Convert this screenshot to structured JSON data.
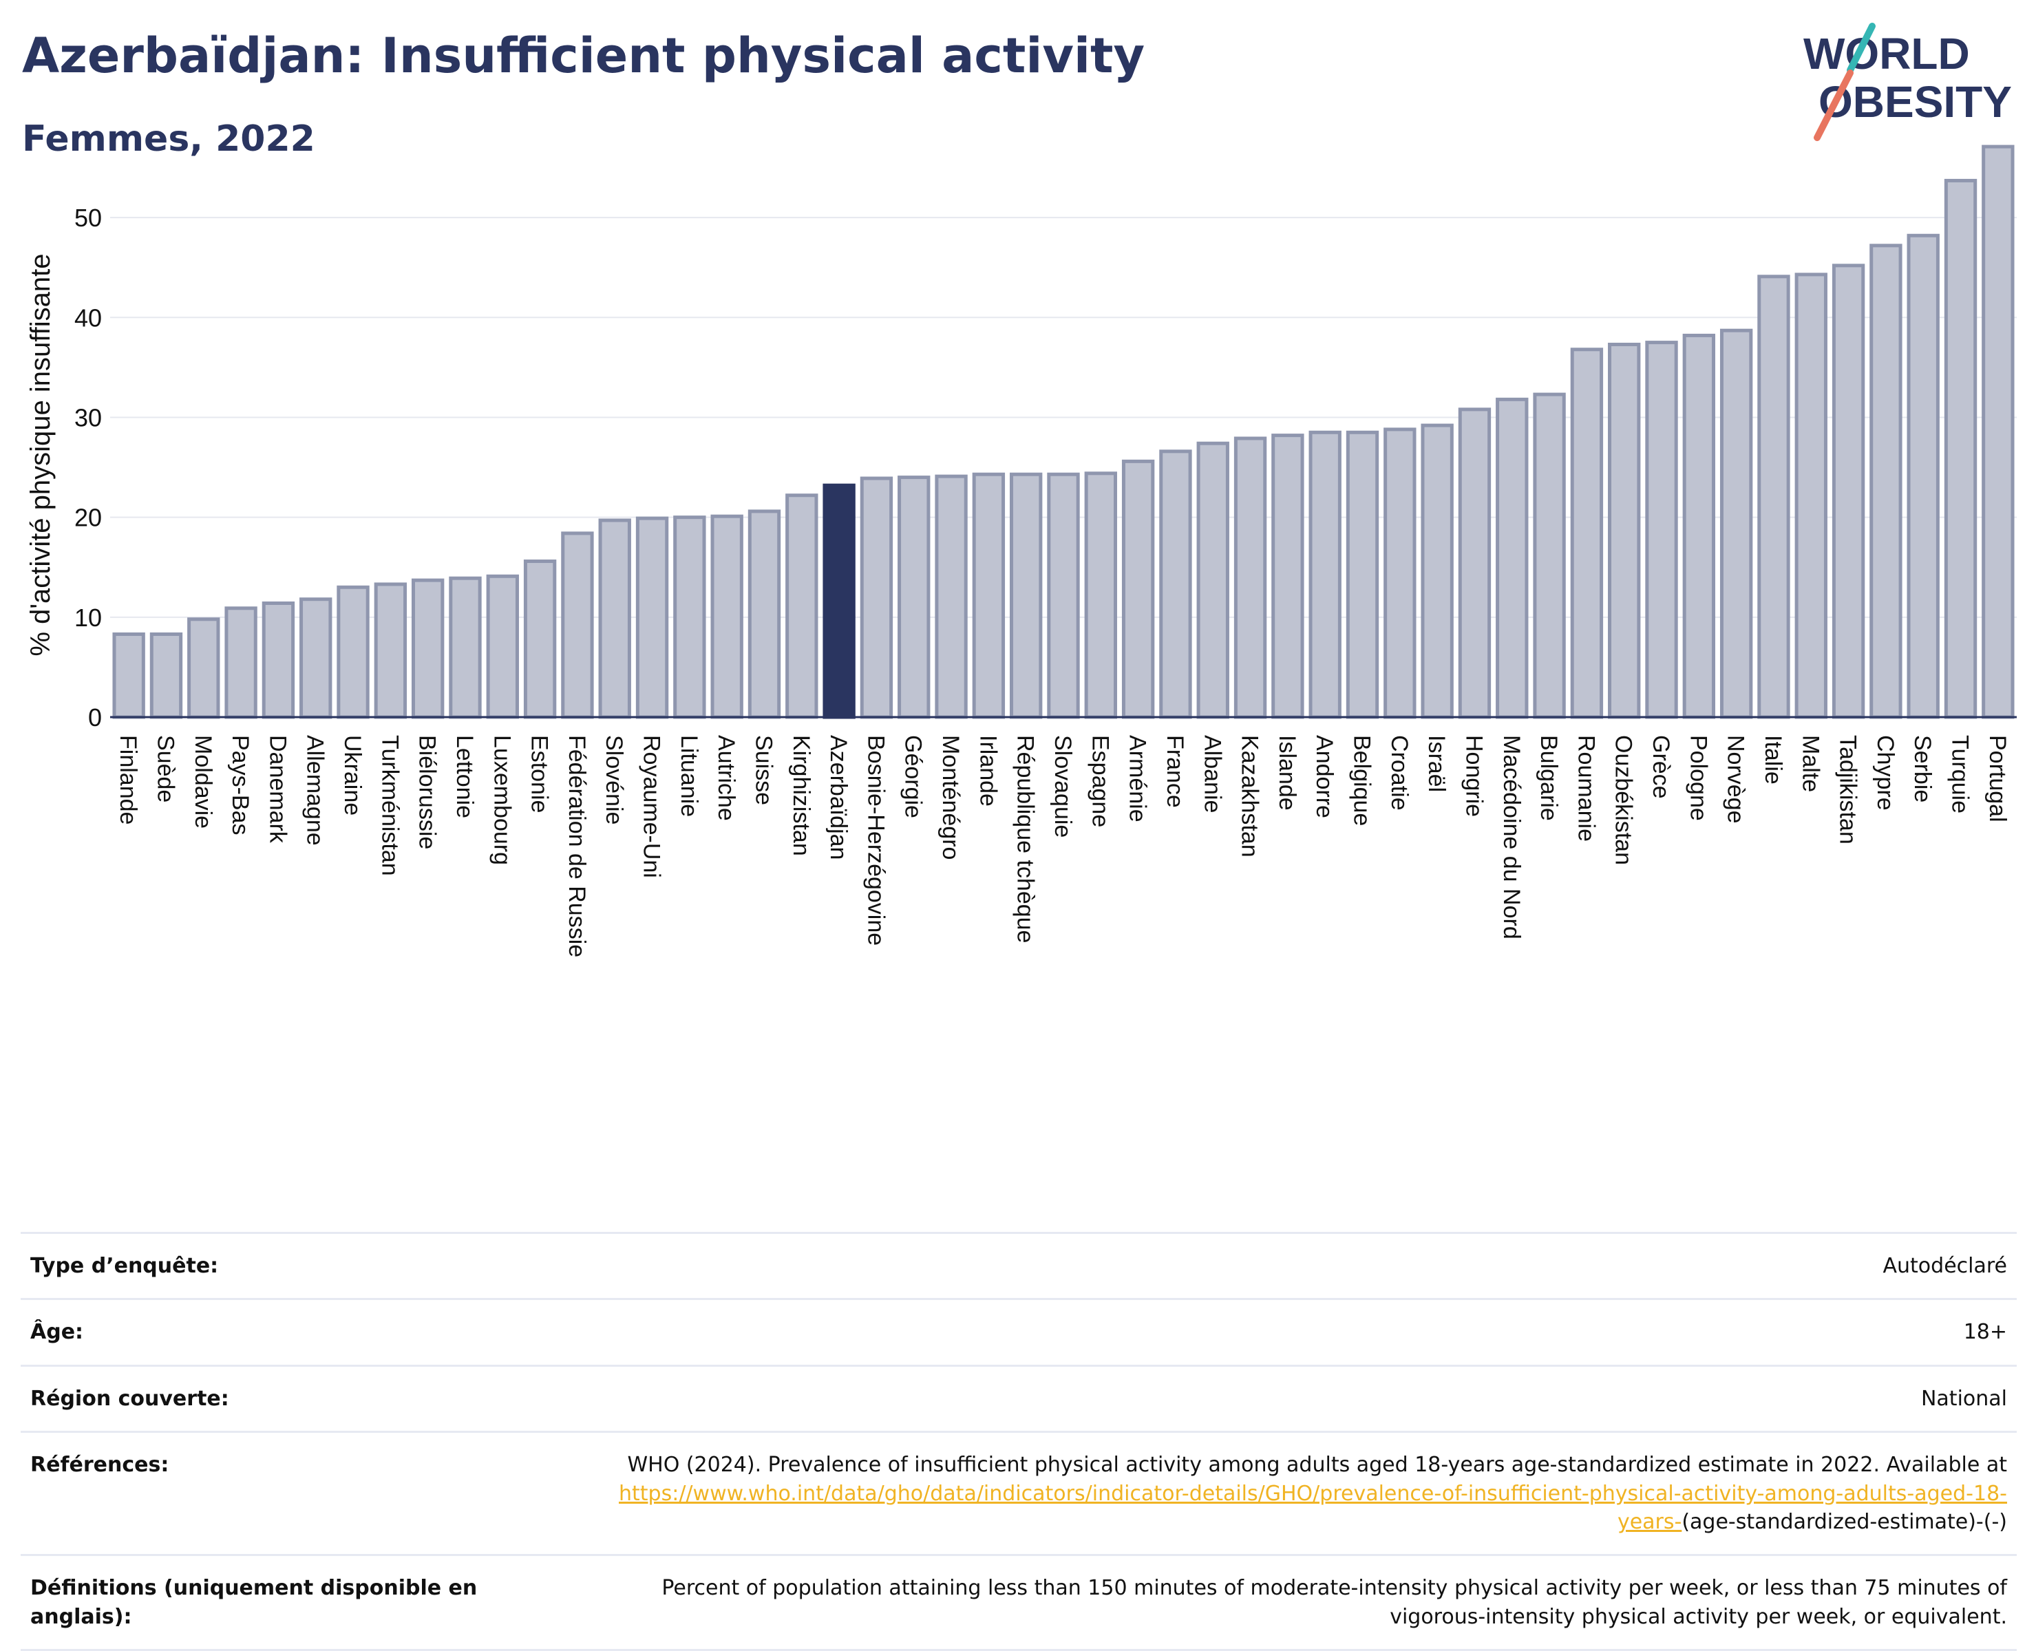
{
  "header": {
    "title": "Azerbaïdjan: Insufficient physical activity",
    "subtitle": "Femmes, 2022",
    "logo_line1": "WORLD",
    "logo_line2": "OBESITY"
  },
  "chart_data": {
    "type": "bar",
    "xlabel": "",
    "ylabel": "% d'activité physique insuffisante",
    "ylim": [
      0,
      58
    ],
    "yticks": [
      0,
      10,
      20,
      30,
      40,
      50
    ],
    "grid": true,
    "highlight": "Azerbaïdjan",
    "categories": [
      "Finlande",
      "Suède",
      "Moldavie",
      "Pays-Bas",
      "Danemark",
      "Allemagne",
      "Ukraine",
      "Turkménistan",
      "Biélorussie",
      "Lettonie",
      "Luxembourg",
      "Estonie",
      "Fédération de Russie",
      "Slovénie",
      "Royaume-Uni",
      "Lituanie",
      "Autriche",
      "Suisse",
      "Kirghizistan",
      "Azerbaïdjan",
      "Bosnie-Herzégovine",
      "Géorgie",
      "Monténégro",
      "Irlande",
      "République tchèque",
      "Slovaquie",
      "Espagne",
      "Arménie",
      "France",
      "Albanie",
      "Kazakhstan",
      "Islande",
      "Andorre",
      "Belgique",
      "Croatie",
      "Israël",
      "Hongrie",
      "Macédoine du Nord",
      "Bulgarie",
      "Roumanie",
      "Ouzbékistan",
      "Grèce",
      "Pologne",
      "Norvège",
      "Italie",
      "Malte",
      "Tadjikistan",
      "Chypre",
      "Serbie",
      "Turquie",
      "Portugal"
    ],
    "values": [
      8.3,
      8.3,
      9.8,
      10.9,
      11.4,
      11.8,
      13.0,
      13.3,
      13.7,
      13.9,
      14.1,
      15.6,
      18.4,
      19.7,
      19.9,
      20.0,
      20.1,
      20.6,
      22.2,
      23.2,
      23.9,
      24.0,
      24.1,
      24.3,
      24.3,
      24.3,
      24.4,
      25.6,
      26.6,
      27.4,
      27.9,
      28.2,
      28.5,
      28.5,
      28.8,
      29.2,
      30.8,
      31.8,
      32.3,
      36.8,
      37.3,
      37.5,
      38.2,
      38.7,
      44.1,
      44.3,
      45.2,
      47.2,
      48.2,
      53.7,
      57.1
    ]
  },
  "colors": {
    "text": "#2a3560",
    "bar": "#bfc3d1",
    "bar_stroke": "#8f96ae",
    "highlight": "#2a3560",
    "link": "#f0b323",
    "logo_teal": "#35b6b4",
    "logo_coral": "#e8755f"
  },
  "info": {
    "survey_label": "Type d’enquête:",
    "survey_value": "Autodéclaré",
    "age_label": "Âge:",
    "age_value": "18+",
    "region_label": "Région couverte:",
    "region_value": "National",
    "refs_label": "Références:",
    "refs_text": "WHO (2024). Prevalence of insufficient physical activity among adults aged 18-years age-standardized estimate in 2022. Available at",
    "refs_link": "https://www.who.int/data/gho/data/indicators/indicator-details/GHO/prevalence-of-insufficient-physical-activity-among-adults-aged-18-years-",
    "refs_tail": "(age-standardized-estimate)-(-)",
    "defs_label": "Définitions (uniquement disponible en anglais):",
    "defs_text": "Percent of population attaining less than 150 minutes of moderate-intensity physical activity per week, or less than 75 minutes of vigorous-intensity physical activity per week, or equivalent."
  }
}
